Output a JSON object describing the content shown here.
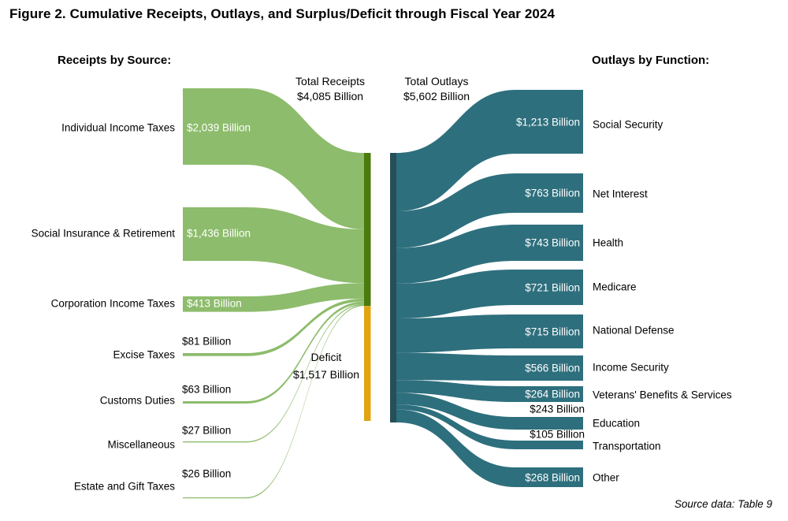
{
  "title": "Figure 2. Cumulative Receipts, Outlays, and Surplus/Deficit through Fiscal Year 2024",
  "left_heading": "Receipts by Source:",
  "right_heading": "Outlays by Function:",
  "totals": {
    "receipts_label": "Total Receipts",
    "receipts_value": "$4,085 Billion",
    "outlays_label": "Total Outlays",
    "outlays_value": "$5,602 Billion"
  },
  "deficit_label": {
    "line1": "Deficit",
    "line2": "$1,517 Billion"
  },
  "source_note": "Source data: Table 9",
  "colors": {
    "receipts_flow": "#8dbc6c",
    "receipts_node": "#4b7a0d",
    "deficit_node": "#e2a414",
    "outlays_flow": "#2e6f7d",
    "outlays_node": "#264f59"
  },
  "chart_data": {
    "type": "sankey",
    "unit": "billions of US dollars",
    "title": "Cumulative Receipts, Outlays, and Surplus/Deficit through Fiscal Year 2024",
    "total_receipts": 4085,
    "total_outlays": 5602,
    "deficit": 1517,
    "receipts_by_source": [
      {
        "name": "Individual Income Taxes",
        "value": 2039,
        "label": "$2,039 Billion"
      },
      {
        "name": "Social Insurance & Retirement",
        "value": 1436,
        "label": "$1,436 Billion"
      },
      {
        "name": "Corporation Income Taxes",
        "value": 413,
        "label": "$413 Billion"
      },
      {
        "name": "Excise Taxes",
        "value": 81,
        "label": "$81 Billion"
      },
      {
        "name": "Customs Duties",
        "value": 63,
        "label": "$63 Billion"
      },
      {
        "name": "Miscellaneous",
        "value": 27,
        "label": "$27 Billion"
      },
      {
        "name": "Estate and Gift Taxes",
        "value": 26,
        "label": "$26 Billion"
      }
    ],
    "outlays_by_function": [
      {
        "name": "Social Security",
        "value": 1213,
        "label": "$1,213 Billion"
      },
      {
        "name": "Net Interest",
        "value": 763,
        "label": "$763 Billion"
      },
      {
        "name": "Health",
        "value": 743,
        "label": "$743 Billion"
      },
      {
        "name": "Medicare",
        "value": 721,
        "label": "$721 Billion"
      },
      {
        "name": "National Defense",
        "value": 715,
        "label": "$715 Billion"
      },
      {
        "name": "Income Security",
        "value": 566,
        "label": "$566 Billion"
      },
      {
        "name": "Veterans' Benefits & Services",
        "value": 264,
        "label": "$264 Billion"
      },
      {
        "name": "Education",
        "value": 243,
        "label": "$243 Billion"
      },
      {
        "name": "Transportation",
        "value": 105,
        "label": "$105 Billion"
      },
      {
        "name": "Other",
        "value": 268,
        "label": "$268 Billion"
      }
    ]
  }
}
